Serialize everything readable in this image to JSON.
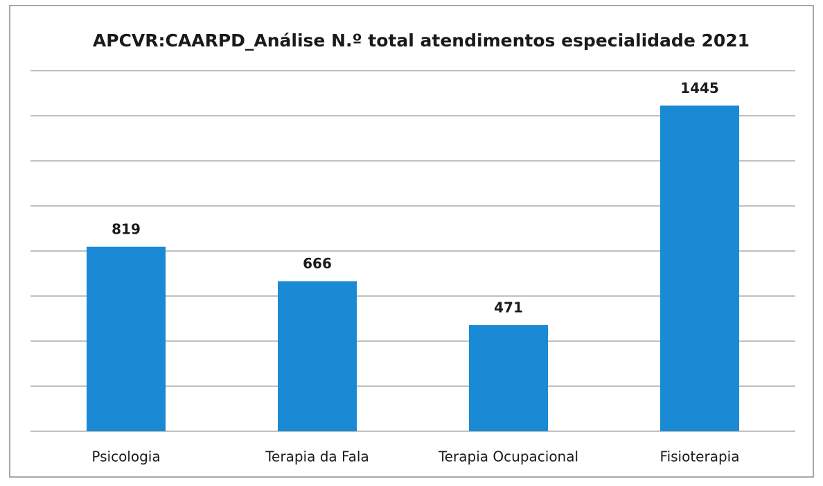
{
  "chart_data": {
    "type": "bar",
    "title": "APCVR:CAARPD_Análise N.º total atendimentos especialidade 2021",
    "categories": [
      "Psicologia",
      "Terapia da Fala",
      "Terapia Ocupacional",
      "Fisioterapia"
    ],
    "values": [
      819,
      666,
      471,
      1445
    ],
    "color": "#1a8ad4",
    "ylim": [
      0,
      1600
    ],
    "yticks": [
      0,
      200,
      400,
      600,
      800,
      1000,
      1200,
      1400,
      1600
    ],
    "grid": true
  }
}
